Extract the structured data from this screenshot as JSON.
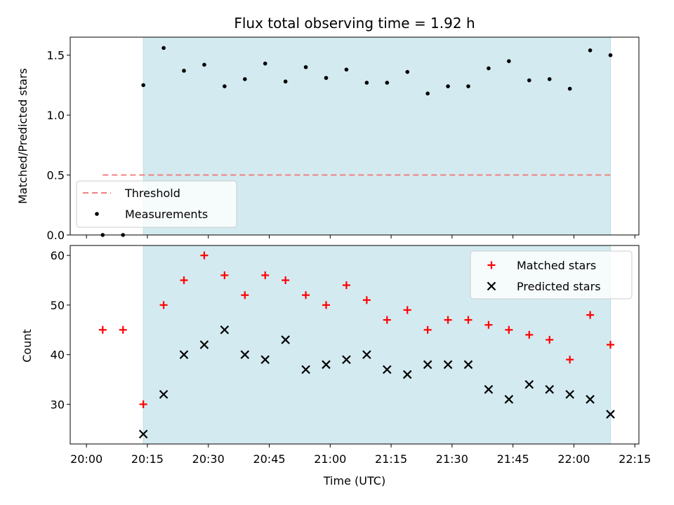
{
  "chart_data": [
    {
      "type": "scatter",
      "title": "Flux total observing time = 1.92 h",
      "xlabel": "",
      "ylabel": "Matched/Predicted stars",
      "ylim": [
        0,
        1.65
      ],
      "yticks": [
        "0.0",
        "0.5",
        "1.0",
        "1.5"
      ],
      "shaded_region": {
        "x_start": "20:14",
        "x_end": "22:09",
        "color": "#d3eaf0"
      },
      "threshold": {
        "name": "Threshold",
        "y": 0.5,
        "x_start": "20:04",
        "x_end": "22:09",
        "color": "#f08080"
      },
      "series": [
        {
          "name": "Measurements",
          "color": "#000000",
          "x": [
            "20:04",
            "20:09",
            "20:14",
            "20:19",
            "20:24",
            "20:29",
            "20:34",
            "20:39",
            "20:44",
            "20:49",
            "20:54",
            "20:59",
            "21:04",
            "21:09",
            "21:14",
            "21:19",
            "21:24",
            "21:29",
            "21:34",
            "21:39",
            "21:44",
            "21:49",
            "21:54",
            "21:59",
            "22:04",
            "22:09"
          ],
          "values": [
            0,
            0,
            1.25,
            1.56,
            1.37,
            1.42,
            1.24,
            1.3,
            1.43,
            1.28,
            1.4,
            1.31,
            1.38,
            1.27,
            1.27,
            1.36,
            1.18,
            1.24,
            1.24,
            1.39,
            1.45,
            1.29,
            1.3,
            1.22,
            1.54,
            1.5
          ]
        }
      ],
      "legend": {
        "placement": "lower-left",
        "entries": [
          "Threshold",
          "Measurements"
        ]
      }
    },
    {
      "type": "scatter",
      "title": "",
      "xlabel": "Time (UTC)",
      "ylabel": "Count",
      "ylim": [
        22,
        62
      ],
      "yticks": [
        "30",
        "40",
        "50",
        "60"
      ],
      "xticks": [
        "20:00",
        "20:15",
        "20:30",
        "20:45",
        "21:00",
        "21:15",
        "21:30",
        "21:45",
        "22:00",
        "22:15"
      ],
      "xlim": [
        "19:56",
        "22:16"
      ],
      "shaded_region": {
        "x_start": "20:14",
        "x_end": "22:09",
        "color": "#d3eaf0"
      },
      "series": [
        {
          "name": "Matched stars",
          "marker": "+",
          "color": "#ff0000",
          "x": [
            "20:04",
            "20:09",
            "20:14",
            "20:19",
            "20:24",
            "20:29",
            "20:34",
            "20:39",
            "20:44",
            "20:49",
            "20:54",
            "20:59",
            "21:04",
            "21:09",
            "21:14",
            "21:19",
            "21:24",
            "21:29",
            "21:34",
            "21:39",
            "21:44",
            "21:49",
            "21:54",
            "21:59",
            "22:04",
            "22:09"
          ],
          "values": [
            45,
            45,
            30,
            50,
            55,
            60,
            56,
            52,
            56,
            55,
            52,
            50,
            54,
            51,
            47,
            49,
            45,
            47,
            47,
            46,
            45,
            44,
            43,
            39,
            48,
            42
          ]
        },
        {
          "name": "Predicted stars",
          "marker": "x",
          "color": "#000000",
          "x": [
            "20:14",
            "20:19",
            "20:24",
            "20:29",
            "20:34",
            "20:39",
            "20:44",
            "20:49",
            "20:54",
            "20:59",
            "21:04",
            "21:09",
            "21:14",
            "21:19",
            "21:24",
            "21:29",
            "21:34",
            "21:39",
            "21:44",
            "21:49",
            "21:54",
            "21:59",
            "22:04",
            "22:09"
          ],
          "values": [
            24,
            32,
            40,
            42,
            45,
            40,
            39,
            43,
            37,
            38,
            39,
            40,
            37,
            36,
            38,
            38,
            38,
            33,
            31,
            34,
            33,
            32,
            31,
            28
          ]
        }
      ],
      "legend": {
        "placement": "top-right",
        "entries": [
          "Matched stars",
          "Predicted stars"
        ]
      }
    }
  ]
}
